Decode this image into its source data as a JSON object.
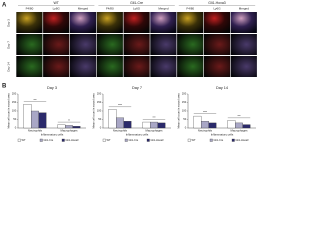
{
  "panel_a": {
    "label": "A",
    "groups": [
      {
        "name": "WT",
        "channels": [
          "F4/80",
          "Ly6G",
          "Merged"
        ]
      },
      {
        "name": "Gli1-Cre",
        "channels": [
          "F4/80",
          "Ly6G",
          "Merged"
        ]
      },
      {
        "name": "Gli1-Hoxa3",
        "channels": [
          "F4/80",
          "Ly6G",
          "Merged"
        ]
      }
    ],
    "rows": [
      "Day 3",
      "Day 7",
      "Day 14"
    ]
  },
  "panel_b": {
    "label": "B"
  },
  "chart_data": [
    {
      "type": "bar",
      "title": "Day 3",
      "x_label": "Inflammatory cells",
      "y_label": "Mean cell count in wound area",
      "categories": [
        "Neutrophils",
        "Macrophages"
      ],
      "ylim": [
        0,
        200
      ],
      "yticks": [
        0,
        50,
        100,
        150,
        200
      ],
      "series": [
        {
          "name": "WT",
          "color": "#ffffff",
          "values": [
            140,
            20
          ]
        },
        {
          "name": "Gli1-Cre",
          "color": "#a9a7c6",
          "values": [
            100,
            15
          ]
        },
        {
          "name": "Gli1-Hoxa3",
          "color": "#2b2a6b",
          "values": [
            90,
            10
          ]
        }
      ],
      "annotations": [
        "***",
        "**"
      ]
    },
    {
      "type": "bar",
      "title": "Day 7",
      "x_label": "Inflammatory cells",
      "y_label": "Mean cell count in wound area",
      "categories": [
        "Neutrophils",
        "Macrophages"
      ],
      "ylim": [
        0,
        200
      ],
      "yticks": [
        0,
        50,
        100,
        150,
        200
      ],
      "series": [
        {
          "name": "WT",
          "color": "#ffffff",
          "values": [
            110,
            35
          ]
        },
        {
          "name": "Gli1-Cre",
          "color": "#a9a7c6",
          "values": [
            60,
            35
          ]
        },
        {
          "name": "Gli1-Hoxa3",
          "color": "#2b2a6b",
          "values": [
            40,
            30
          ]
        }
      ],
      "annotations": [
        "****",
        "***"
      ]
    },
    {
      "type": "bar",
      "title": "Day 14",
      "x_label": "Inflammatory cells",
      "y_label": "Mean cell count in wound area",
      "categories": [
        "Neutrophils",
        "Macrophages"
      ],
      "ylim": [
        0,
        200
      ],
      "yticks": [
        0,
        50,
        100,
        150,
        200
      ],
      "series": [
        {
          "name": "WT",
          "color": "#ffffff",
          "values": [
            70,
            45
          ]
        },
        {
          "name": "Gli1-Cre",
          "color": "#a9a7c6",
          "values": [
            40,
            30
          ]
        },
        {
          "name": "Gli1-Hoxa3",
          "color": "#2b2a6b",
          "values": [
            30,
            20
          ]
        }
      ],
      "annotations": [
        "****",
        "***"
      ]
    }
  ]
}
